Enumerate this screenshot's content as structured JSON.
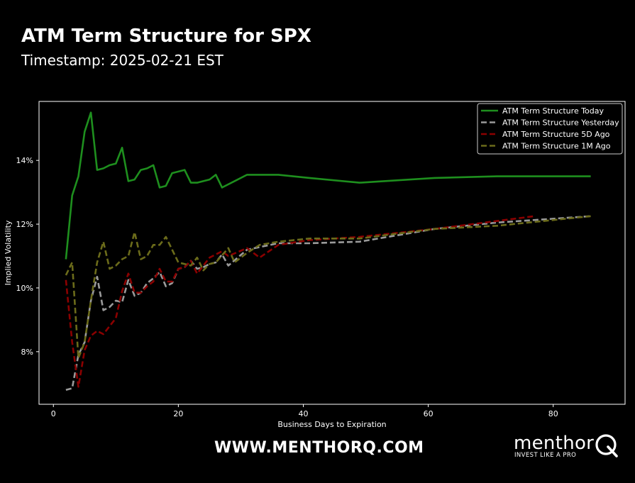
{
  "header": {
    "title": "ATM Term Structure for SPX",
    "subtitle": "Timestamp: 2025-02-21 EST"
  },
  "footer": {
    "website": "WWW.MENTHORQ.COM",
    "logo_text": "menthor",
    "logo_tagline": "INVEST LIKE A PRO",
    "logo_mark": "Q"
  },
  "chart_data": {
    "type": "line",
    "xlabel": "Business Days to Expiration",
    "ylabel": "Implied Volatility",
    "xlim": [
      -2.3,
      91.5
    ],
    "ylim": [
      6.35,
      15.85
    ],
    "x_ticks": [
      0,
      20,
      40,
      60,
      80
    ],
    "x_tick_labels": [
      "0",
      "20",
      "40",
      "60",
      "80"
    ],
    "y_ticks": [
      8,
      10,
      12,
      14
    ],
    "y_tick_labels": [
      "8%",
      "10%",
      "12%",
      "14%"
    ],
    "grid": false,
    "legend_position": "top-right",
    "series": [
      {
        "name": "ATM Term Structure Today",
        "color": "#1e8f1e",
        "style": "solid",
        "points": [
          [
            2,
            10.9
          ],
          [
            3,
            12.9
          ],
          [
            4,
            13.5
          ],
          [
            5,
            14.9
          ],
          [
            6,
            15.5
          ],
          [
            7,
            13.7
          ],
          [
            8,
            13.75
          ],
          [
            9,
            13.85
          ],
          [
            10,
            13.9
          ],
          [
            11,
            14.4
          ],
          [
            12,
            13.35
          ],
          [
            13,
            13.4
          ],
          [
            14,
            13.7
          ],
          [
            15,
            13.75
          ],
          [
            16,
            13.85
          ],
          [
            17,
            13.15
          ],
          [
            18,
            13.2
          ],
          [
            19,
            13.6
          ],
          [
            21,
            13.7
          ],
          [
            22,
            13.3
          ],
          [
            23,
            13.3
          ],
          [
            25,
            13.4
          ],
          [
            26,
            13.55
          ],
          [
            27,
            13.15
          ],
          [
            31,
            13.55
          ],
          [
            36,
            13.55
          ],
          [
            41,
            13.45
          ],
          [
            49,
            13.3
          ],
          [
            61,
            13.45
          ],
          [
            71,
            13.5
          ],
          [
            86,
            13.5
          ]
        ]
      },
      {
        "name": "ATM Term Structure Yesterday",
        "color": "#9a9a9a",
        "style": "dashed",
        "points": [
          [
            2,
            6.8
          ],
          [
            3,
            6.85
          ],
          [
            4,
            7.9
          ],
          [
            5,
            8.3
          ],
          [
            6,
            9.6
          ],
          [
            7,
            10.35
          ],
          [
            8,
            9.3
          ],
          [
            9,
            9.4
          ],
          [
            10,
            9.6
          ],
          [
            11,
            9.55
          ],
          [
            12,
            10.25
          ],
          [
            13,
            9.75
          ],
          [
            14,
            9.85
          ],
          [
            15,
            10.15
          ],
          [
            16,
            10.3
          ],
          [
            17,
            10.5
          ],
          [
            18,
            10.05
          ],
          [
            19,
            10.15
          ],
          [
            20,
            10.6
          ],
          [
            21,
            10.65
          ],
          [
            22,
            10.85
          ],
          [
            23,
            10.6
          ],
          [
            24,
            10.65
          ],
          [
            25,
            10.75
          ],
          [
            26,
            10.8
          ],
          [
            27,
            11.05
          ],
          [
            28,
            10.7
          ],
          [
            31,
            11.2
          ],
          [
            36,
            11.4
          ],
          [
            41,
            11.4
          ],
          [
            49,
            11.45
          ],
          [
            61,
            11.85
          ],
          [
            71,
            12.05
          ],
          [
            86,
            12.25
          ]
        ]
      },
      {
        "name": "ATM Term Structure 5D Ago",
        "color": "#8b0000",
        "style": "dashed",
        "points": [
          [
            2,
            10.25
          ],
          [
            3,
            8.3
          ],
          [
            4,
            6.9
          ],
          [
            5,
            8.05
          ],
          [
            6,
            8.5
          ],
          [
            7,
            8.65
          ],
          [
            8,
            8.55
          ],
          [
            9,
            8.8
          ],
          [
            10,
            9.05
          ],
          [
            11,
            9.9
          ],
          [
            12,
            10.45
          ],
          [
            13,
            9.85
          ],
          [
            14,
            9.85
          ],
          [
            15,
            10.05
          ],
          [
            16,
            10.2
          ],
          [
            17,
            10.6
          ],
          [
            18,
            10.2
          ],
          [
            19,
            10.2
          ],
          [
            20,
            10.6
          ],
          [
            21,
            10.65
          ],
          [
            22,
            10.85
          ],
          [
            23,
            10.45
          ],
          [
            24,
            10.7
          ],
          [
            25,
            10.95
          ],
          [
            26,
            11.05
          ],
          [
            27,
            11.15
          ],
          [
            28,
            11.0
          ],
          [
            31,
            11.25
          ],
          [
            33,
            10.95
          ],
          [
            36,
            11.35
          ],
          [
            41,
            11.5
          ],
          [
            49,
            11.6
          ],
          [
            61,
            11.85
          ],
          [
            71,
            12.1
          ],
          [
            77,
            12.25
          ]
        ]
      },
      {
        "name": "ATM Term Structure 1M Ago",
        "color": "#6b6b1a",
        "style": "dashed",
        "points": [
          [
            2,
            10.4
          ],
          [
            3,
            10.8
          ],
          [
            4,
            7.8
          ],
          [
            5,
            8.3
          ],
          [
            6,
            9.6
          ],
          [
            7,
            10.8
          ],
          [
            8,
            11.45
          ],
          [
            9,
            10.6
          ],
          [
            10,
            10.7
          ],
          [
            11,
            10.9
          ],
          [
            12,
            11.0
          ],
          [
            13,
            11.75
          ],
          [
            14,
            10.9
          ],
          [
            15,
            11.0
          ],
          [
            16,
            11.35
          ],
          [
            17,
            11.35
          ],
          [
            18,
            11.6
          ],
          [
            19,
            11.2
          ],
          [
            20,
            10.8
          ],
          [
            22,
            10.7
          ],
          [
            23,
            10.95
          ],
          [
            24,
            10.55
          ],
          [
            25,
            10.75
          ],
          [
            26,
            10.8
          ],
          [
            28,
            11.25
          ],
          [
            29,
            10.8
          ],
          [
            31,
            11.1
          ],
          [
            33,
            11.35
          ],
          [
            36,
            11.45
          ],
          [
            41,
            11.55
          ],
          [
            49,
            11.55
          ],
          [
            61,
            11.85
          ],
          [
            71,
            11.95
          ],
          [
            86,
            12.25
          ]
        ]
      }
    ]
  }
}
